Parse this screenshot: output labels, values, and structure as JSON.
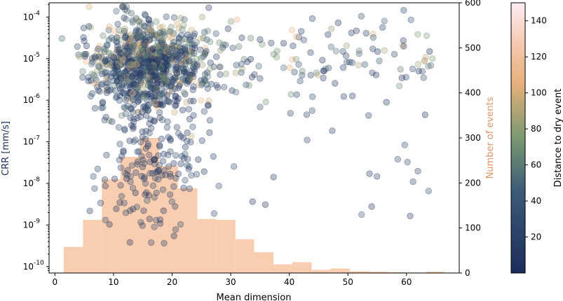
{
  "chart_data": {
    "type": "scatter",
    "xlabel": "Mean dimension",
    "ylabel": "CRR [mm/s]",
    "y2label": "Number of events",
    "colorbar_label": "Distance to dry event",
    "xlim": [
      -1,
      69
    ],
    "ylim_log": [
      7e-11,
      0.00022
    ],
    "y2lim": [
      0,
      600
    ],
    "clim": [
      0,
      150
    ],
    "y_scale": "log",
    "x_ticks": [
      "0",
      "10",
      "20",
      "30",
      "40",
      "50",
      "60"
    ],
    "y_ticks": [
      "10",
      "10",
      "10",
      "10",
      "10",
      "10",
      "10"
    ],
    "y_tick_exponents": [
      "-10",
      "-9",
      "-8",
      "-7",
      "-6",
      "-5",
      "-4"
    ],
    "y2_ticks": [
      "0",
      "100",
      "200",
      "300",
      "400",
      "500",
      "600"
    ],
    "colorbar_ticks": [
      "20",
      "40",
      "60",
      "80",
      "100",
      "120",
      "140"
    ],
    "colors": {
      "crr_axis_label": "#1f2f5c",
      "events_axis_label": "#e0956a",
      "histogram_fill": "#f8cdb0",
      "colormap_low": "#1d2c5a",
      "colormap_mid": "#9aa56f",
      "colormap_high": "#fdeef4"
    },
    "histogram": {
      "bin_edges": [
        1.5,
        4.8,
        8.0,
        11.2,
        14.5,
        17.8,
        21.0,
        24.3,
        27.5,
        30.8,
        34.0,
        37.3,
        40.5,
        43.8,
        47.0,
        50.3,
        53.5,
        56.8,
        60.0,
        63.3,
        66.5
      ],
      "counts": [
        58,
        118,
        208,
        258,
        300,
        238,
        188,
        120,
        118,
        75,
        46,
        19,
        24,
        7,
        10,
        4,
        3,
        2,
        1,
        3
      ]
    },
    "scatter_summary": {
      "n_points": 1300,
      "dense_region_x": [
        5,
        35
      ],
      "dense_region_y_log10": [
        -7,
        -4.2
      ]
    }
  }
}
